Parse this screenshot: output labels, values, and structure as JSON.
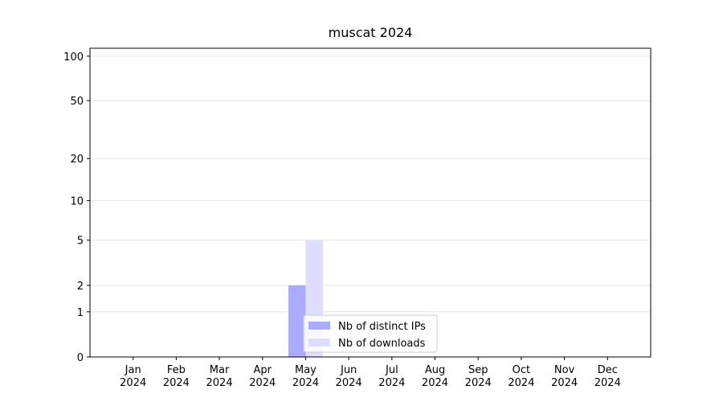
{
  "chart_data": {
    "type": "bar",
    "title": "muscat 2024",
    "categories": [
      "Jan\n2024",
      "Feb\n2024",
      "Mar\n2024",
      "Apr\n2024",
      "May\n2024",
      "Jun\n2024",
      "Jul\n2024",
      "Aug\n2024",
      "Sep\n2024",
      "Oct\n2024",
      "Nov\n2024",
      "Dec\n2024"
    ],
    "series": [
      {
        "name": "Nb of distinct IPs",
        "color": "#aaaaff",
        "values": [
          0,
          0,
          0,
          0,
          2,
          0,
          0,
          0,
          0,
          0,
          0,
          0
        ]
      },
      {
        "name": "Nb of downloads",
        "color": "#ddddff",
        "values": [
          0,
          0,
          0,
          0,
          5,
          0,
          0,
          0,
          0,
          0,
          0,
          0
        ]
      }
    ],
    "yscale": "log1p",
    "ylim": [
      0,
      113
    ],
    "yticks": [
      0,
      1,
      2,
      5,
      10,
      20,
      50,
      100
    ],
    "grid": true,
    "legend": "lower center"
  }
}
